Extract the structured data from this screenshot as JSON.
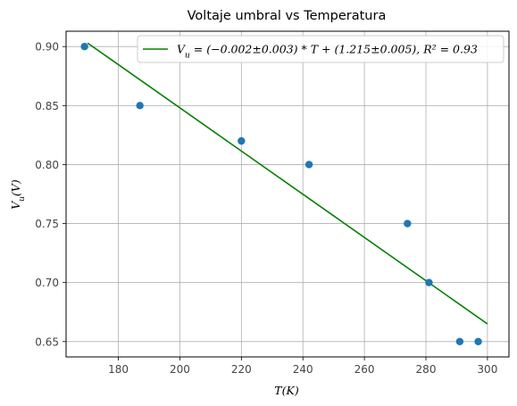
{
  "chart_data": {
    "type": "scatter",
    "title": "Voltaje umbral vs Temperatura",
    "xlabel": "T(K)",
    "ylabel": "V_u(V)",
    "xlim": [
      163,
      307
    ],
    "ylim": [
      0.637,
      0.913
    ],
    "xticks": [
      180,
      200,
      220,
      240,
      260,
      280,
      300
    ],
    "yticks": [
      0.65,
      0.7,
      0.75,
      0.8,
      0.85,
      0.9
    ],
    "grid": true,
    "legend_position": "top-right",
    "points": [
      {
        "x": 169,
        "y": 0.9
      },
      {
        "x": 187,
        "y": 0.85
      },
      {
        "x": 220,
        "y": 0.82
      },
      {
        "x": 242,
        "y": 0.8
      },
      {
        "x": 274,
        "y": 0.75
      },
      {
        "x": 281,
        "y": 0.7
      },
      {
        "x": 291,
        "y": 0.65
      },
      {
        "x": 297,
        "y": 0.65
      }
    ],
    "fit_line": {
      "label": "V_u = (−0.002±0.003) * T + (1.215±0.005), R² = 0.93",
      "x": [
        170,
        300
      ],
      "y": [
        0.903,
        0.665
      ]
    },
    "colors": {
      "points": "#1f77b4",
      "fit_line": "#008000",
      "grid": "#b0b0b0"
    }
  }
}
